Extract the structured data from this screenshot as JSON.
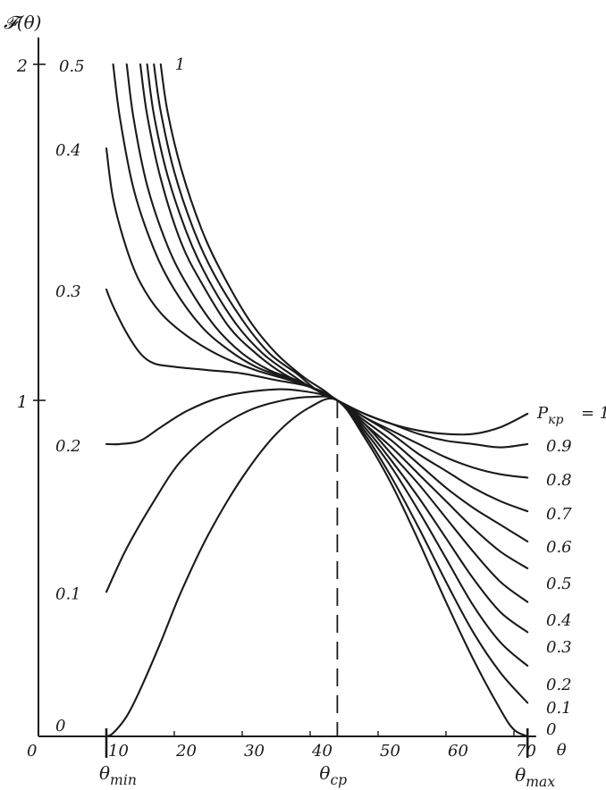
{
  "chart_data": {
    "type": "line",
    "title": "",
    "ylabel": "𝓕(θ)",
    "xlabel": "θ",
    "origin_label": "0",
    "xlim": [
      0,
      73
    ],
    "ylim": [
      0,
      2
    ],
    "x_ticks": [
      {
        "value": 10,
        "label": "10"
      },
      {
        "value": 20,
        "label": "20"
      },
      {
        "value": 30,
        "label": "30"
      },
      {
        "value": 40,
        "label": "40"
      },
      {
        "value": 50,
        "label": "50"
      },
      {
        "value": 60,
        "label": "60"
      },
      {
        "value": 70,
        "label": "70"
      }
    ],
    "y_ticks": [
      {
        "value": 1,
        "label": "1"
      },
      {
        "value": 2,
        "label": "2"
      }
    ],
    "special_x": {
      "theta_min": {
        "value": 10,
        "label": "θ",
        "sub": "min"
      },
      "theta_cp": {
        "value": 44,
        "label": "θ",
        "sub": "cp"
      },
      "theta_max": {
        "value": 72,
        "label": "θ",
        "sub": "max"
      }
    },
    "series_param_label": "P",
    "series_param_sub": "кр",
    "series": [
      {
        "name": "0",
        "left_label": "0",
        "right_label": "0",
        "points": [
          [
            10,
            0
          ],
          [
            11,
            0.01
          ],
          [
            13,
            0.06
          ],
          [
            15,
            0.14
          ],
          [
            18,
            0.28
          ],
          [
            21,
            0.43
          ],
          [
            25,
            0.6
          ],
          [
            30,
            0.77
          ],
          [
            35,
            0.9
          ],
          [
            40,
            0.98
          ],
          [
            44,
            1.0
          ],
          [
            48,
            0.89
          ],
          [
            52,
            0.75
          ],
          [
            56,
            0.58
          ],
          [
            60,
            0.4
          ],
          [
            64,
            0.23
          ],
          [
            68,
            0.08
          ],
          [
            70,
            0.02
          ],
          [
            72,
            0
          ]
        ]
      },
      {
        "name": "0.1",
        "left_label": "0.1",
        "right_label": "0.1",
        "points": [
          [
            10,
            0.43
          ],
          [
            13,
            0.56
          ],
          [
            17,
            0.7
          ],
          [
            21,
            0.82
          ],
          [
            26,
            0.91
          ],
          [
            31,
            0.97
          ],
          [
            36,
            1.0
          ],
          [
            40,
            1.01
          ],
          [
            44,
            1.0
          ],
          [
            48,
            0.9
          ],
          [
            52,
            0.77
          ],
          [
            56,
            0.62
          ],
          [
            60,
            0.46
          ],
          [
            64,
            0.31
          ],
          [
            68,
            0.19
          ],
          [
            72,
            0.1
          ]
        ]
      },
      {
        "name": "0.2",
        "left_label": "0.2",
        "right_label": "0.2",
        "points": [
          [
            10,
            0.87
          ],
          [
            12,
            0.87
          ],
          [
            15,
            0.88
          ],
          [
            18,
            0.92
          ],
          [
            22,
            0.97
          ],
          [
            27,
            1.01
          ],
          [
            33,
            1.03
          ],
          [
            38,
            1.03
          ],
          [
            44,
            1.0
          ],
          [
            48,
            0.91
          ],
          [
            52,
            0.8
          ],
          [
            56,
            0.67
          ],
          [
            60,
            0.53
          ],
          [
            64,
            0.39
          ],
          [
            68,
            0.28
          ],
          [
            72,
            0.21
          ]
        ]
      },
      {
        "name": "0.3",
        "left_label": "0.3",
        "right_label": "0.3",
        "points": [
          [
            10,
            1.33
          ],
          [
            11,
            1.28
          ],
          [
            13,
            1.2
          ],
          [
            15,
            1.14
          ],
          [
            17,
            1.11
          ],
          [
            20,
            1.1
          ],
          [
            25,
            1.09
          ],
          [
            30,
            1.08
          ],
          [
            35,
            1.06
          ],
          [
            40,
            1.04
          ],
          [
            44,
            1.0
          ],
          [
            48,
            0.92
          ],
          [
            52,
            0.82
          ],
          [
            56,
            0.71
          ],
          [
            60,
            0.59
          ],
          [
            64,
            0.47
          ],
          [
            68,
            0.37
          ],
          [
            72,
            0.31
          ]
        ]
      },
      {
        "name": "0.4",
        "left_label": "0.4",
        "right_label": "0.4",
        "points": [
          [
            10,
            1.75
          ],
          [
            11,
            1.6
          ],
          [
            13,
            1.45
          ],
          [
            15,
            1.35
          ],
          [
            18,
            1.26
          ],
          [
            22,
            1.19
          ],
          [
            27,
            1.13
          ],
          [
            32,
            1.09
          ],
          [
            37,
            1.06
          ],
          [
            40,
            1.04
          ],
          [
            44,
            1.0
          ],
          [
            48,
            0.93
          ],
          [
            52,
            0.84
          ],
          [
            56,
            0.75
          ],
          [
            60,
            0.65
          ],
          [
            64,
            0.55
          ],
          [
            68,
            0.46
          ],
          [
            72,
            0.4
          ]
        ]
      },
      {
        "name": "0.5",
        "left_label": "0.5",
        "right_label": "0.5",
        "points": [
          [
            11,
            2.0
          ],
          [
            12,
            1.84
          ],
          [
            14,
            1.63
          ],
          [
            17,
            1.45
          ],
          [
            20,
            1.33
          ],
          [
            24,
            1.22
          ],
          [
            28,
            1.15
          ],
          [
            32,
            1.1
          ],
          [
            36,
            1.07
          ],
          [
            40,
            1.04
          ],
          [
            44,
            1.0
          ],
          [
            48,
            0.93
          ],
          [
            52,
            0.86
          ],
          [
            56,
            0.78
          ],
          [
            60,
            0.7
          ],
          [
            64,
            0.62
          ],
          [
            68,
            0.55
          ],
          [
            72,
            0.5
          ]
        ]
      },
      {
        "name": "0.6",
        "left_label": "",
        "right_label": "0.6",
        "points": [
          [
            13,
            2.0
          ],
          [
            14,
            1.84
          ],
          [
            16,
            1.64
          ],
          [
            19,
            1.46
          ],
          [
            22,
            1.34
          ],
          [
            26,
            1.22
          ],
          [
            30,
            1.14
          ],
          [
            34,
            1.09
          ],
          [
            38,
            1.06
          ],
          [
            41,
            1.03
          ],
          [
            44,
            1.0
          ],
          [
            48,
            0.94
          ],
          [
            52,
            0.88
          ],
          [
            56,
            0.81
          ],
          [
            60,
            0.74
          ],
          [
            64,
            0.68
          ],
          [
            68,
            0.63
          ],
          [
            72,
            0.58
          ]
        ]
      },
      {
        "name": "0.7",
        "left_label": "",
        "right_label": "0.7",
        "points": [
          [
            15,
            2.0
          ],
          [
            16,
            1.85
          ],
          [
            18,
            1.66
          ],
          [
            21,
            1.47
          ],
          [
            24,
            1.35
          ],
          [
            28,
            1.22
          ],
          [
            32,
            1.14
          ],
          [
            36,
            1.08
          ],
          [
            40,
            1.04
          ],
          [
            44,
            1.0
          ],
          [
            48,
            0.95
          ],
          [
            52,
            0.9
          ],
          [
            56,
            0.84
          ],
          [
            60,
            0.79
          ],
          [
            64,
            0.74
          ],
          [
            68,
            0.7
          ],
          [
            72,
            0.67
          ]
        ]
      },
      {
        "name": "0.8",
        "left_label": "",
        "right_label": "0.8",
        "points": [
          [
            16,
            2.0
          ],
          [
            17,
            1.85
          ],
          [
            19,
            1.67
          ],
          [
            22,
            1.49
          ],
          [
            25,
            1.36
          ],
          [
            29,
            1.23
          ],
          [
            33,
            1.14
          ],
          [
            37,
            1.08
          ],
          [
            40,
            1.04
          ],
          [
            44,
            1.0
          ],
          [
            48,
            0.95
          ],
          [
            52,
            0.91
          ],
          [
            56,
            0.87
          ],
          [
            60,
            0.83
          ],
          [
            64,
            0.8
          ],
          [
            68,
            0.78
          ],
          [
            72,
            0.77
          ]
        ]
      },
      {
        "name": "0.9",
        "left_label": "",
        "right_label": "0.9",
        "points": [
          [
            17,
            2.0
          ],
          [
            18,
            1.86
          ],
          [
            20,
            1.68
          ],
          [
            23,
            1.5
          ],
          [
            26,
            1.37
          ],
          [
            30,
            1.24
          ],
          [
            34,
            1.14
          ],
          [
            38,
            1.08
          ],
          [
            41,
            1.03
          ],
          [
            44,
            1.0
          ],
          [
            48,
            0.96
          ],
          [
            52,
            0.93
          ],
          [
            56,
            0.9
          ],
          [
            60,
            0.88
          ],
          [
            64,
            0.87
          ],
          [
            68,
            0.86
          ],
          [
            72,
            0.87
          ]
        ]
      },
      {
        "name": "1",
        "left_label": "1",
        "right_label": "= 1",
        "points": [
          [
            18,
            2.0
          ],
          [
            19,
            1.86
          ],
          [
            21,
            1.69
          ],
          [
            24,
            1.51
          ],
          [
            27,
            1.38
          ],
          [
            31,
            1.24
          ],
          [
            35,
            1.14
          ],
          [
            39,
            1.07
          ],
          [
            42,
            1.03
          ],
          [
            44,
            1.0
          ],
          [
            48,
            0.96
          ],
          [
            52,
            0.93
          ],
          [
            56,
            0.91
          ],
          [
            60,
            0.9
          ],
          [
            64,
            0.9
          ],
          [
            68,
            0.92
          ],
          [
            72,
            0.96
          ]
        ]
      }
    ]
  }
}
